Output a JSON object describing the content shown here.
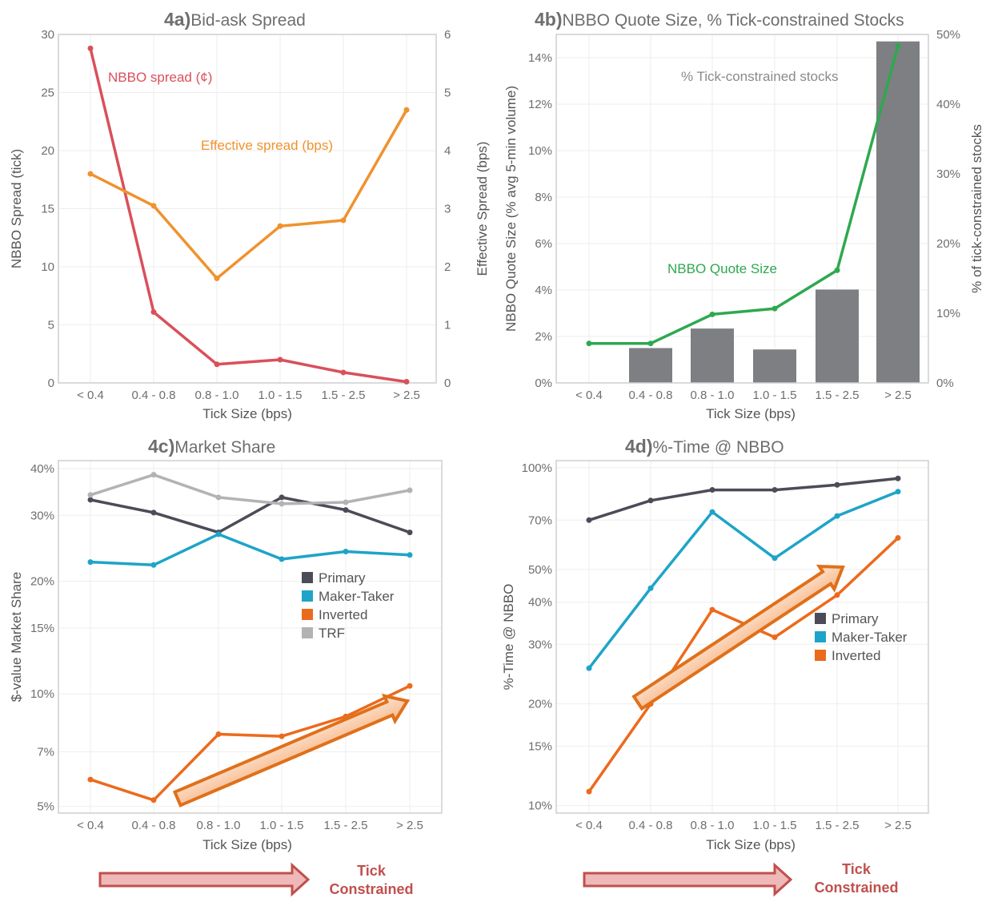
{
  "chart_data": [
    {
      "id": "4a",
      "type": "line",
      "title_prefix": "4a)",
      "title": "Bid-ask Spread",
      "xlabel": "Tick Size (bps)",
      "ylabel": "NBBO Spread (tick)",
      "ylabel_right": "Effective Spread (bps)",
      "categories": [
        "< 0.4",
        "0.4 - 0.8",
        "0.8 - 1.0",
        "1.0 - 1.5",
        "1.5 - 2.5",
        "> 2.5"
      ],
      "ylim": [
        0,
        30
      ],
      "yticks": [
        "0",
        "5",
        "10",
        "15",
        "20",
        "25",
        "30"
      ],
      "y2lim": [
        0,
        6
      ],
      "y2ticks": [
        "0",
        "1",
        "2",
        "3",
        "4",
        "5",
        "6"
      ],
      "series": [
        {
          "name": "NBBO spread (¢)",
          "axis": "left",
          "color": "#d9505a",
          "values": [
            28.8,
            6.1,
            1.6,
            2.0,
            0.9,
            0.1
          ]
        },
        {
          "name": "Effective spread (bps)",
          "axis": "right",
          "color": "#f0922e",
          "values": [
            3.6,
            3.05,
            1.8,
            2.7,
            2.8,
            4.7
          ]
        }
      ]
    },
    {
      "id": "4b",
      "type": "bar",
      "title_prefix": "4b)",
      "title": "NBBO Quote Size, % Tick-constrained Stocks",
      "xlabel": "Tick Size (bps)",
      "ylabel": "NBBO Quote Size (% avg 5-min volume)",
      "ylabel_right": "% of tick-constrained stocks",
      "categories": [
        "< 0.4",
        "0.4 - 0.8",
        "0.8 - 1.0",
        "1.0 - 1.5",
        "1.5 - 2.5",
        "> 2.5"
      ],
      "ylim": [
        0,
        15
      ],
      "yticks": [
        "0%",
        "2%",
        "4%",
        "6%",
        "8%",
        "10%",
        "12%",
        "14%"
      ],
      "y2lim": [
        0,
        50
      ],
      "y2ticks": [
        "0%",
        "10%",
        "20%",
        "30%",
        "40%",
        "50%"
      ],
      "series": [
        {
          "name": "% Tick-constrained stocks",
          "axis": "right",
          "kind": "bar",
          "color": "#7d7f83",
          "values": [
            0,
            5,
            7.8,
            4.8,
            13.4,
            49
          ]
        },
        {
          "name": "NBBO Quote Size",
          "axis": "left",
          "kind": "line",
          "color": "#2ea84f",
          "values": [
            1.7,
            1.7,
            2.95,
            3.2,
            4.85,
            14.5
          ]
        }
      ]
    },
    {
      "id": "4c",
      "type": "line",
      "title_prefix": "4c)",
      "title": "Market Share",
      "xlabel": "Tick Size (bps)",
      "ylabel": "$-value Market Share",
      "yscale": "log",
      "ylim": [
        0.048,
        0.42
      ],
      "yticks": [
        {
          "v": 0.05,
          "label": "5%"
        },
        {
          "v": 0.07,
          "label": "7%"
        },
        {
          "v": 0.1,
          "label": "10%"
        },
        {
          "v": 0.15,
          "label": "15%"
        },
        {
          "v": 0.2,
          "label": "20%"
        },
        {
          "v": 0.3,
          "label": "30%"
        },
        {
          "v": 0.4,
          "label": "40%"
        }
      ],
      "categories": [
        "< 0.4",
        "0.4 - 0.8",
        "0.8 - 1.0",
        "1.0 - 1.5",
        "1.5 - 2.5",
        "> 2.5"
      ],
      "legend": [
        "Primary",
        "Maker-Taker",
        "Inverted",
        "TRF"
      ],
      "series": [
        {
          "name": "Primary",
          "color": "#4b4c57",
          "values": [
            0.33,
            0.305,
            0.27,
            0.335,
            0.31,
            0.27
          ]
        },
        {
          "name": "Maker-Taker",
          "color": "#1ea4c8",
          "values": [
            0.225,
            0.221,
            0.267,
            0.229,
            0.24,
            0.235
          ]
        },
        {
          "name": "Inverted",
          "color": "#ec6a1c",
          "values": [
            0.059,
            0.052,
            0.078,
            0.077,
            0.087,
            0.105
          ]
        },
        {
          "name": "TRF",
          "color": "#b3b3b5",
          "values": [
            0.34,
            0.385,
            0.335,
            0.322,
            0.325,
            0.35
          ]
        }
      ]
    },
    {
      "id": "4d",
      "type": "line",
      "title_prefix": "4d)",
      "title": "%-Time @ NBBO",
      "xlabel": "Tick Size (bps)",
      "ylabel": "%-Time @ NBBO",
      "yscale": "log",
      "ylim": [
        0.095,
        1.05
      ],
      "yticks": [
        {
          "v": 0.1,
          "label": "10%"
        },
        {
          "v": 0.15,
          "label": "15%"
        },
        {
          "v": 0.2,
          "label": "20%"
        },
        {
          "v": 0.3,
          "label": "30%"
        },
        {
          "v": 0.4,
          "label": "40%"
        },
        {
          "v": 0.5,
          "label": "50%"
        },
        {
          "v": 0.7,
          "label": "70%"
        },
        {
          "v": 1.0,
          "label": "100%"
        }
      ],
      "categories": [
        "< 0.4",
        "0.4 - 0.8",
        "0.8 - 1.0",
        "1.0 - 1.5",
        "1.5 - 2.5",
        "> 2.5"
      ],
      "legend": [
        "Primary",
        "Maker-Taker",
        "Inverted"
      ],
      "series": [
        {
          "name": "Primary",
          "color": "#4b4c57",
          "values": [
            0.7,
            0.8,
            0.86,
            0.86,
            0.89,
            0.93
          ]
        },
        {
          "name": "Maker-Taker",
          "color": "#1ea4c8",
          "values": [
            0.255,
            0.44,
            0.74,
            0.54,
            0.72,
            0.85
          ]
        },
        {
          "name": "Inverted",
          "color": "#ec6a1c",
          "values": [
            0.11,
            0.2,
            0.38,
            0.315,
            0.42,
            0.62
          ]
        }
      ]
    }
  ],
  "footer": {
    "label_line1": "Tick",
    "label_line2": "Constrained",
    "arrow_color": "#c0504d"
  }
}
